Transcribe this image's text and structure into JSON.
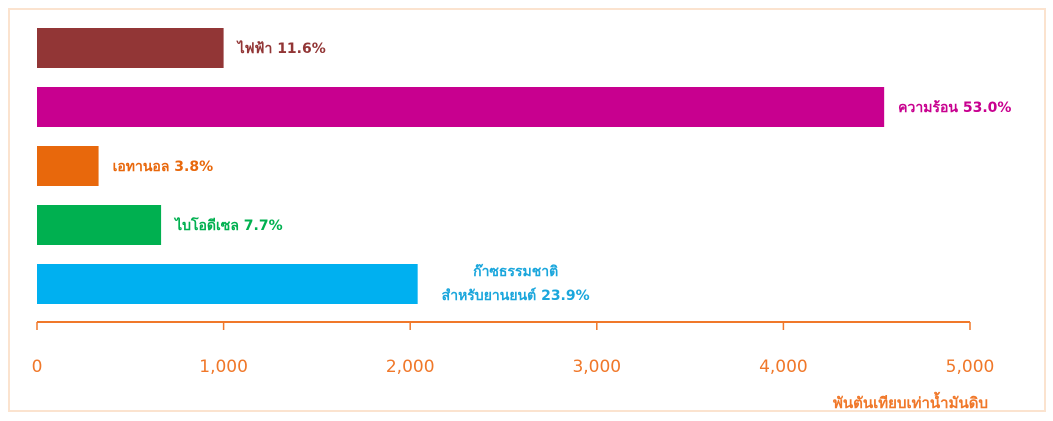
{
  "chart_data": {
    "type": "bar",
    "orientation": "horizontal",
    "categories": [
      "ไฟฟ้า",
      "ความร้อน",
      "เอทานอล",
      "ไบโอดีเซล",
      "ก๊าซธรรมชาติ สำหรับยานยนต์"
    ],
    "labels": [
      [
        "ไฟฟ้า 11.6%"
      ],
      [
        "ความร้อน 53.0%"
      ],
      [
        "เอทานอล 3.8%"
      ],
      [
        "ไบโอดีเซล 7.7%"
      ],
      [
        "ก๊าซธรรมชาติ",
        "สำหรับยานยนต์ 23.9%"
      ]
    ],
    "values": [
      1000,
      4540,
      330,
      665,
      2040
    ],
    "colors": [
      "#923636",
      "#c8008f",
      "#e8680c",
      "#00b050",
      "#00b0f0"
    ],
    "label_colors": [
      "#923636",
      "#c8008f",
      "#e8680c",
      "#00b050",
      "#1aa6dc"
    ],
    "xlim": [
      0,
      5000
    ],
    "ticks": [
      0,
      1000,
      2000,
      3000,
      4000,
      5000
    ],
    "tick_labels": [
      "0",
      "1,000",
      "2,000",
      "3,000",
      "4,000",
      "5,000"
    ],
    "xlabel": "พันตันเทียบเท่าน้ำมันดิบ",
    "axis_color": "#f0782a",
    "grid": false
  }
}
